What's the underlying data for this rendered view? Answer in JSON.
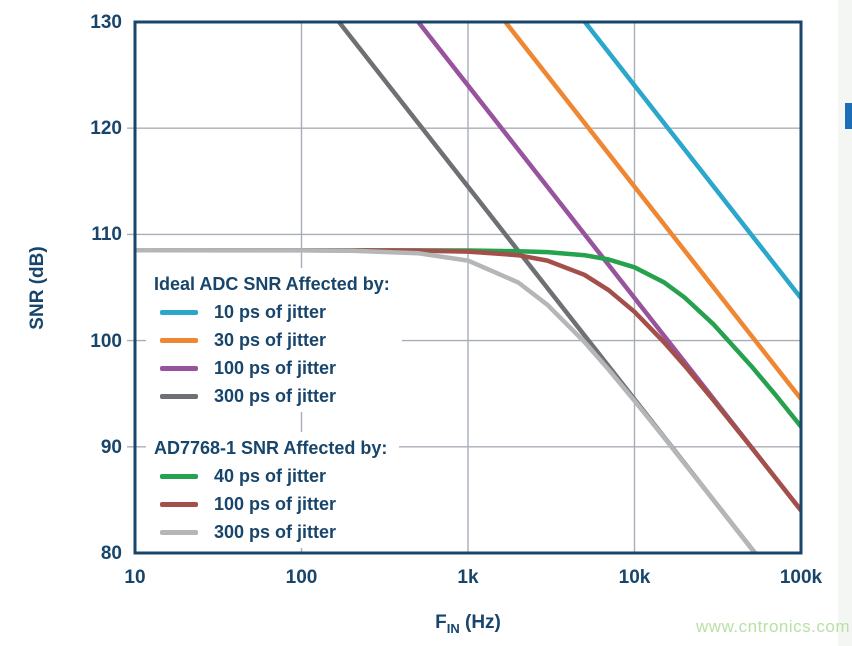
{
  "watermark": "www.cntronics.com",
  "colors": {
    "axis_navy": "#17456b",
    "grid": "#a8aeb9",
    "watermark_green": "#b9e0a7",
    "edge_marker_blue": "#1c6db8"
  },
  "chart_data": {
    "type": "line",
    "title": "",
    "xlabel_main": "F",
    "xlabel_sub": "IN",
    "xlabel_unit": " (Hz)",
    "ylabel": "SNR (dB)",
    "xscale": "log",
    "xlim": [
      10,
      100000
    ],
    "ylim": [
      80,
      130
    ],
    "grid": true,
    "xticks": [
      {
        "v": 10,
        "label": "10"
      },
      {
        "v": 100,
        "label": "100"
      },
      {
        "v": 1000,
        "label": "1k"
      },
      {
        "v": 10000,
        "label": "10k"
      },
      {
        "v": 100000,
        "label": "100k"
      }
    ],
    "yticks": [
      {
        "v": 130,
        "label": "130"
      },
      {
        "v": 120,
        "label": "120"
      },
      {
        "v": 110,
        "label": "110"
      },
      {
        "v": 100,
        "label": "100"
      },
      {
        "v": 90,
        "label": "90"
      },
      {
        "v": 80,
        "label": "80"
      }
    ],
    "series": [
      {
        "name": "Ideal ADC, 10 ps of jitter",
        "color": "#2ba7cb",
        "points": [
          [
            5033,
            130
          ],
          [
            100000,
            104.0
          ]
        ]
      },
      {
        "name": "Ideal ADC, 30 ps of jitter",
        "color": "#ef8632",
        "points": [
          [
            1678,
            130
          ],
          [
            100000,
            94.5
          ]
        ]
      },
      {
        "name": "Ideal ADC, 100 ps of jitter",
        "color": "#98539f",
        "points": [
          [
            503,
            130
          ],
          [
            100000,
            84.0
          ]
        ]
      },
      {
        "name": "Ideal ADC, 300 ps of jitter",
        "color": "#6f7073",
        "points": [
          [
            168,
            130
          ],
          [
            54500,
            79.75
          ]
        ]
      },
      {
        "name": "AD7768-1, 40 ps of jitter",
        "color": "#26a14e",
        "points": [
          [
            10,
            108.5
          ],
          [
            100,
            108.5
          ],
          [
            500,
            108.49
          ],
          [
            1000,
            108.48
          ],
          [
            2000,
            108.42
          ],
          [
            3000,
            108.33
          ],
          [
            5000,
            108.04
          ],
          [
            7000,
            107.64
          ],
          [
            10000,
            106.9
          ],
          [
            15000,
            105.5
          ],
          [
            20000,
            104.06
          ],
          [
            30000,
            101.5
          ],
          [
            50000,
            97.65
          ],
          [
            70000,
            94.92
          ],
          [
            100000,
            91.9
          ]
        ]
      },
      {
        "name": "AD7768-1, 100 ps of jitter",
        "color": "#a3504b",
        "points": [
          [
            10,
            108.5
          ],
          [
            100,
            108.5
          ],
          [
            500,
            108.47
          ],
          [
            1000,
            108.38
          ],
          [
            2000,
            108.04
          ],
          [
            3000,
            107.53
          ],
          [
            5000,
            106.2
          ],
          [
            7000,
            104.75
          ],
          [
            10000,
            102.71
          ],
          [
            15000,
            99.87
          ],
          [
            20000,
            97.65
          ],
          [
            30000,
            94.33
          ],
          [
            50000,
            90.0
          ],
          [
            70000,
            87.1
          ],
          [
            100000,
            84.02
          ]
        ]
      },
      {
        "name": "AD7768-1, 300 ps of jitter",
        "color": "#b5b6b8",
        "points": [
          [
            10,
            108.5
          ],
          [
            100,
            108.49
          ],
          [
            200,
            108.46
          ],
          [
            500,
            108.23
          ],
          [
            1000,
            107.53
          ],
          [
            2000,
            105.48
          ],
          [
            3000,
            103.37
          ],
          [
            5000,
            99.88
          ],
          [
            7000,
            97.26
          ],
          [
            10000,
            94.33
          ],
          [
            15000,
            90.9
          ],
          [
            20000,
            88.42
          ],
          [
            30000,
            84.92
          ],
          [
            40000,
            82.43
          ],
          [
            54000,
            79.8
          ]
        ]
      }
    ],
    "legends": [
      {
        "header": "Ideal ADC SNR Affected by:",
        "items": [
          {
            "label": "10 ps of jitter",
            "color": "#2ba7cb"
          },
          {
            "label": "30 ps of jitter",
            "color": "#ef8632"
          },
          {
            "label": "100 ps of jitter",
            "color": "#98539f"
          },
          {
            "label": "300 ps of jitter",
            "color": "#6f7073"
          }
        ]
      },
      {
        "header": "AD7768-1 SNR Affected by:",
        "items": [
          {
            "label": "40 ps of jitter",
            "color": "#26a14e"
          },
          {
            "label": "100 ps of jitter",
            "color": "#a3504b"
          },
          {
            "label": "300 ps of jitter",
            "color": "#b5b6b8"
          }
        ]
      }
    ]
  }
}
